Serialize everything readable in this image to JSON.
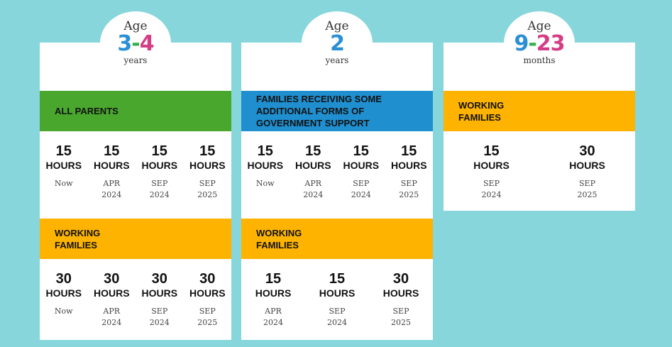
{
  "colors": {
    "background": "#87d6dc",
    "green": "#4aa72e",
    "blue": "#1f8fd0",
    "yellow": "#fdb300",
    "age_blue": "#2a8fd4",
    "age_pink": "#d43e86",
    "age_green": "#36b24a"
  },
  "cards": [
    {
      "age_word": "Age",
      "age_from": "3",
      "age_dash": "-",
      "age_to": "4",
      "age_unit": "years",
      "sections": [
        {
          "label": "ALL PARENTS",
          "color": "green",
          "entries": [
            {
              "hours": "15",
              "unit": "HOURS",
              "when": "Now",
              "year": ""
            },
            {
              "hours": "15",
              "unit": "HOURS",
              "when": "APR",
              "year": "2024"
            },
            {
              "hours": "15",
              "unit": "HOURS",
              "when": "SEP",
              "year": "2024"
            },
            {
              "hours": "15",
              "unit": "HOURS",
              "when": "SEP",
              "year": "2025"
            }
          ]
        },
        {
          "label": "WORKING FAMILIES",
          "color": "yellow",
          "entries": [
            {
              "hours": "30",
              "unit": "HOURS",
              "when": "Now",
              "year": ""
            },
            {
              "hours": "30",
              "unit": "HOURS",
              "when": "APR",
              "year": "2024"
            },
            {
              "hours": "30",
              "unit": "HOURS",
              "when": "SEP",
              "year": "2024"
            },
            {
              "hours": "30",
              "unit": "HOURS",
              "when": "SEP",
              "year": "2025"
            }
          ]
        }
      ]
    },
    {
      "age_word": "Age",
      "age_from": "2",
      "age_dash": "",
      "age_to": "",
      "age_unit": "years",
      "sections": [
        {
          "label": "FAMILIES RECEIVING SOME ADDITIONAL FORMS OF GOVERNMENT SUPPORT",
          "color": "blue",
          "entries": [
            {
              "hours": "15",
              "unit": "HOURS",
              "when": "Now",
              "year": ""
            },
            {
              "hours": "15",
              "unit": "HOURS",
              "when": "APR",
              "year": "2024"
            },
            {
              "hours": "15",
              "unit": "HOURS",
              "when": "SEP",
              "year": "2024"
            },
            {
              "hours": "15",
              "unit": "HOURS",
              "when": "SEP",
              "year": "2025"
            }
          ]
        },
        {
          "label": "WORKING FAMILIES",
          "color": "yellow",
          "entries": [
            {
              "hours": "15",
              "unit": "HOURS",
              "when": "APR",
              "year": "2024"
            },
            {
              "hours": "15",
              "unit": "HOURS",
              "when": "SEP",
              "year": "2024"
            },
            {
              "hours": "30",
              "unit": "HOURS",
              "when": "SEP",
              "year": "2025"
            }
          ]
        }
      ]
    },
    {
      "age_word": "Age",
      "age_from": "9",
      "age_dash": "-",
      "age_to": "23",
      "age_unit": "months",
      "sections": [
        {
          "label": "WORKING FAMILIES",
          "color": "yellow",
          "entries": [
            {
              "hours": "15",
              "unit": "HOURS",
              "when": "SEP",
              "year": "2024"
            },
            {
              "hours": "30",
              "unit": "HOURS",
              "when": "SEP",
              "year": "2025"
            }
          ]
        }
      ]
    }
  ]
}
